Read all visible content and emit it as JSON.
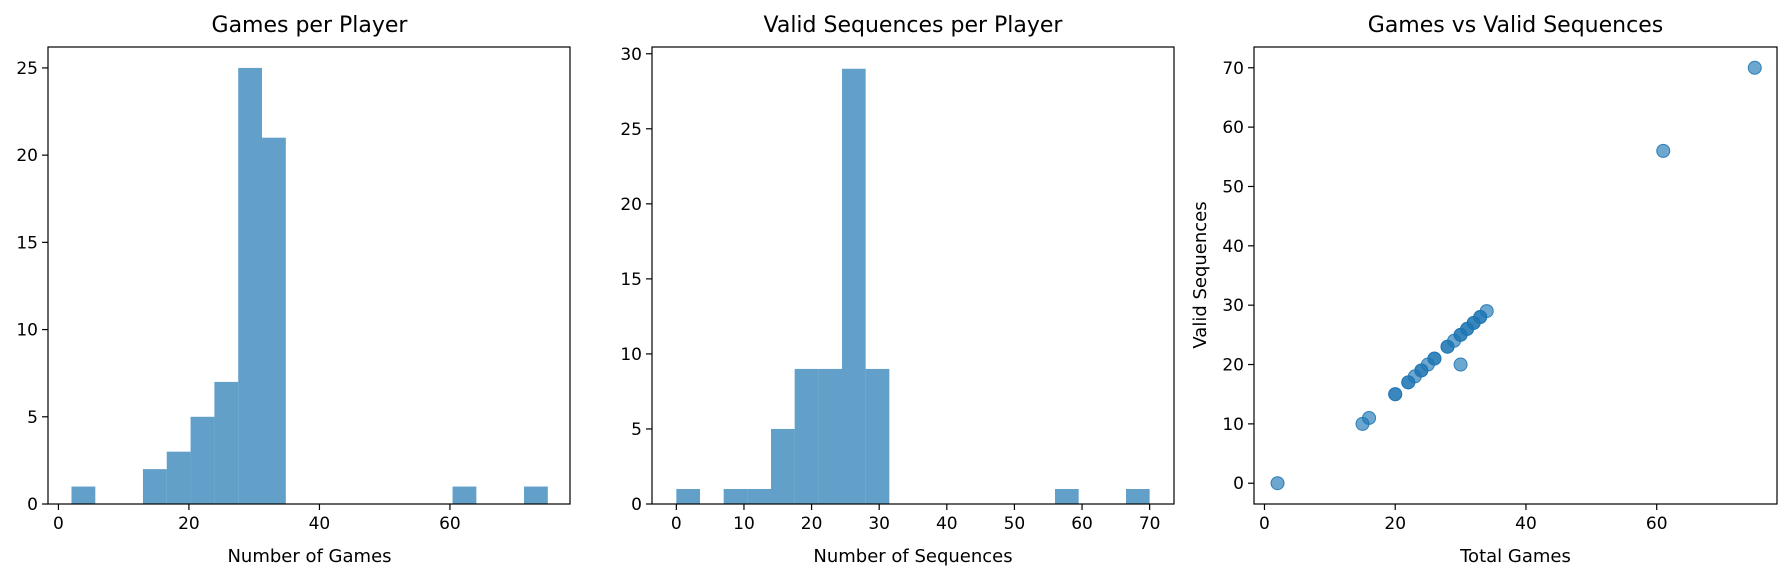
{
  "style": {
    "bar_color": "#1f77b4",
    "bar_alpha": 0.7,
    "marker_color": "#1f77b4",
    "marker_alpha": 0.65
  },
  "chart_data": [
    {
      "type": "bar",
      "subtype": "histogram",
      "title": "Games per Player",
      "xlabel": "Number of Games",
      "ylabel": "",
      "xlim": [
        -1.6,
        78.4
      ],
      "ylim": [
        0,
        26.2
      ],
      "xticks": [
        0,
        20,
        40,
        60
      ],
      "yticks": [
        0,
        5,
        10,
        15,
        20,
        25
      ],
      "bin_start": 2,
      "bin_width": 3.65,
      "counts": [
        1,
        0,
        0,
        2,
        3,
        5,
        7,
        25,
        21,
        0,
        0,
        0,
        0,
        0,
        0,
        0,
        1,
        0,
        0,
        1
      ]
    },
    {
      "type": "bar",
      "subtype": "histogram",
      "title": "Valid Sequences per Player",
      "xlabel": "Number of Sequences",
      "ylabel": "",
      "xlim": [
        -3.6,
        73.6
      ],
      "ylim": [
        0,
        30.45
      ],
      "xticks": [
        0,
        10,
        20,
        30,
        40,
        50,
        60,
        70
      ],
      "yticks": [
        0,
        5,
        10,
        15,
        20,
        25,
        30
      ],
      "bin_start": 0,
      "bin_width": 3.5,
      "counts": [
        1,
        0,
        1,
        1,
        5,
        9,
        9,
        29,
        9,
        0,
        0,
        0,
        0,
        0,
        0,
        0,
        1,
        0,
        0,
        1
      ]
    },
    {
      "type": "scatter",
      "title": "Games vs Valid Sequences",
      "xlabel": "Total Games",
      "ylabel": "Valid Sequences",
      "xlim": [
        -1.6,
        78.4
      ],
      "ylim": [
        -3.5,
        73.5
      ],
      "xticks": [
        0,
        20,
        40,
        60
      ],
      "yticks": [
        0,
        10,
        20,
        30,
        40,
        50,
        60,
        70
      ],
      "x": [
        2,
        15,
        16,
        20,
        20,
        22,
        22,
        23,
        24,
        24,
        25,
        26,
        26,
        28,
        28,
        29,
        30,
        30,
        31,
        31,
        32,
        32,
        33,
        33,
        34,
        30,
        61,
        75
      ],
      "y": [
        0,
        10,
        11,
        15,
        15,
        17,
        17,
        18,
        19,
        19,
        20,
        21,
        21,
        23,
        23,
        24,
        25,
        25,
        26,
        26,
        27,
        27,
        28,
        28,
        29,
        20,
        56,
        70
      ]
    }
  ]
}
